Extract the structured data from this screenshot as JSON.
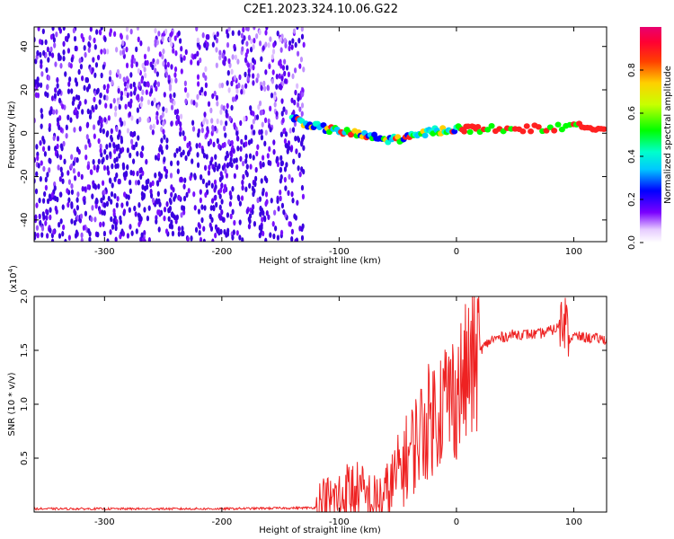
{
  "title": "C2E1.2023.324.10.06.G22",
  "chart_data": [
    {
      "type": "heatmap",
      "xlabel": "Height of straight line (km)",
      "ylabel": "Frequency (Hz)",
      "xlim": [
        -360,
        128
      ],
      "ylim": [
        -50,
        49
      ],
      "xticks": [
        -300,
        -200,
        -100,
        0,
        100
      ],
      "yticks": [
        -40,
        -20,
        0,
        20,
        40
      ],
      "colorbar": {
        "label": "Normalized spectral amplitude",
        "range": [
          0,
          1
        ],
        "ticks": [
          0.0,
          0.2,
          0.4,
          0.6,
          0.8
        ],
        "tick_labels": [
          "0.0",
          "0.2",
          "0.4",
          "0.6",
          "0.8"
        ]
      },
      "signal_track": {
        "description_x": [
          -140,
          -120,
          -100,
          -80,
          -60,
          -40,
          -20,
          0,
          20,
          60,
          100,
          128
        ],
        "frequency_hz": [
          7,
          3,
          1,
          -1,
          -3,
          -2,
          1,
          2,
          2,
          2,
          3,
          3
        ]
      },
      "grid": false,
      "legend": "colorbar right"
    },
    {
      "type": "line",
      "xlabel": "Height of straight line (km)",
      "ylabel": "SNR (10 * v/v)",
      "yscale_label": "(x10^4)",
      "xlim": [
        -360,
        128
      ],
      "ylim": [
        0,
        2.0
      ],
      "xticks": [
        -300,
        -200,
        -100,
        0,
        100
      ],
      "yticks": [
        0.5,
        1.0,
        1.5,
        2.0
      ],
      "ytick_labels": [
        "0.5",
        "1.0",
        "1.5",
        "2.0"
      ],
      "color": "#ee2222",
      "series": [
        {
          "x": [
            -360,
            -300,
            -200,
            -120,
            -100,
            -90,
            -80,
            -70,
            -60,
            -50,
            -40,
            -30,
            -20,
            -10,
            0,
            10,
            20,
            30,
            50,
            70,
            85,
            92,
            95,
            100,
            128
          ],
          "values": [
            0.03,
            0.03,
            0.03,
            0.04,
            0.12,
            0.2,
            0.15,
            0.08,
            0.15,
            0.35,
            0.55,
            0.75,
            0.9,
            1.05,
            1.1,
            1.3,
            1.5,
            1.6,
            1.65,
            1.65,
            1.7,
            1.8,
            1.6,
            1.63,
            1.6
          ]
        }
      ]
    }
  ],
  "colors": {
    "line": "#ee2222",
    "axis": "#000000"
  }
}
